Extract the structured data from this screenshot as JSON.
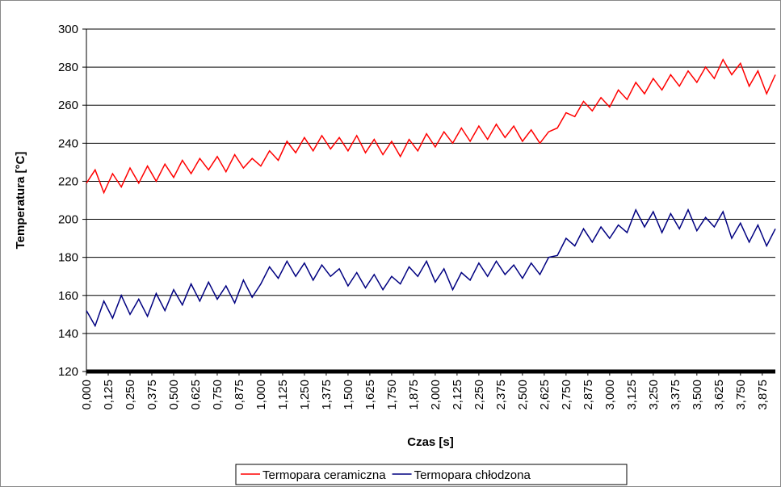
{
  "chart_data": {
    "type": "line",
    "y_label": "Temperatura [°C]",
    "x_label": "Czas [s]",
    "xlim": [
      0,
      3.95
    ],
    "ylim": [
      120,
      300
    ],
    "yticks": [
      120,
      140,
      160,
      180,
      200,
      220,
      240,
      260,
      280,
      300
    ],
    "xticks": [
      {
        "value": 0,
        "label": "0,000"
      },
      {
        "value": 0.125,
        "label": "0,125"
      },
      {
        "value": 0.25,
        "label": "0,250"
      },
      {
        "value": 0.375,
        "label": "0,375"
      },
      {
        "value": 0.5,
        "label": "0,500"
      },
      {
        "value": 0.625,
        "label": "0,625"
      },
      {
        "value": 0.75,
        "label": "0,750"
      },
      {
        "value": 0.875,
        "label": "0,875"
      },
      {
        "value": 1,
        "label": "1,000"
      },
      {
        "value": 1.125,
        "label": "1,125"
      },
      {
        "value": 1.25,
        "label": "1,250"
      },
      {
        "value": 1.375,
        "label": "1,375"
      },
      {
        "value": 1.5,
        "label": "1,500"
      },
      {
        "value": 1.625,
        "label": "1,625"
      },
      {
        "value": 1.75,
        "label": "1,750"
      },
      {
        "value": 1.875,
        "label": "1,875"
      },
      {
        "value": 2,
        "label": "2,000"
      },
      {
        "value": 2.125,
        "label": "2,125"
      },
      {
        "value": 2.25,
        "label": "2,250"
      },
      {
        "value": 2.375,
        "label": "2,375"
      },
      {
        "value": 2.5,
        "label": "2,500"
      },
      {
        "value": 2.625,
        "label": "2,625"
      },
      {
        "value": 2.75,
        "label": "2,750"
      },
      {
        "value": 2.875,
        "label": "2,875"
      },
      {
        "value": 3,
        "label": "3,000"
      },
      {
        "value": 3.125,
        "label": "3,125"
      },
      {
        "value": 3.25,
        "label": "3,250"
      },
      {
        "value": 3.375,
        "label": "3,375"
      },
      {
        "value": 3.5,
        "label": "3,500"
      },
      {
        "value": 3.625,
        "label": "3,625"
      },
      {
        "value": 3.75,
        "label": "3,750"
      },
      {
        "value": 3.875,
        "label": "3,875"
      }
    ],
    "grid": true,
    "legend": "bottom",
    "x": [
      0,
      0.05,
      0.1,
      0.15,
      0.2,
      0.25,
      0.3,
      0.35,
      0.4,
      0.45,
      0.5,
      0.55,
      0.6,
      0.65,
      0.7,
      0.75,
      0.8,
      0.85,
      0.9,
      0.95,
      1,
      1.05,
      1.1,
      1.15,
      1.2,
      1.25,
      1.3,
      1.35,
      1.4,
      1.45,
      1.5,
      1.55,
      1.6,
      1.65,
      1.7,
      1.75,
      1.8,
      1.85,
      1.9,
      1.95,
      2,
      2.05,
      2.1,
      2.15,
      2.2,
      2.25,
      2.3,
      2.35,
      2.4,
      2.45,
      2.5,
      2.55,
      2.6,
      2.65,
      2.7,
      2.75,
      2.8,
      2.85,
      2.9,
      2.95,
      3,
      3.05,
      3.1,
      3.15,
      3.2,
      3.25,
      3.3,
      3.35,
      3.4,
      3.45,
      3.5,
      3.55,
      3.6,
      3.65,
      3.7,
      3.75,
      3.8,
      3.85,
      3.9,
      3.95
    ],
    "series": [
      {
        "name": "Termopara ceramiczna",
        "color": "#ff0000",
        "values": [
          219,
          226,
          214,
          224,
          217,
          227,
          219,
          228,
          220,
          229,
          222,
          231,
          224,
          232,
          226,
          233,
          225,
          234,
          227,
          232,
          228,
          236,
          231,
          241,
          235,
          243,
          236,
          244,
          237,
          243,
          236,
          244,
          235,
          242,
          234,
          241,
          233,
          242,
          236,
          245,
          238,
          246,
          240,
          248,
          241,
          249,
          242,
          250,
          243,
          249,
          241,
          247,
          240,
          246,
          248,
          256,
          254,
          262,
          257,
          264,
          259,
          268,
          263,
          272,
          266,
          274,
          268,
          276,
          270,
          278,
          272,
          280,
          274,
          284,
          276,
          282,
          270,
          278,
          266,
          276
        ]
      },
      {
        "name": "Termopara chłodzona",
        "color": "#000080",
        "values": [
          152,
          144,
          157,
          148,
          160,
          150,
          158,
          149,
          161,
          152,
          163,
          155,
          166,
          157,
          167,
          158,
          165,
          156,
          168,
          159,
          166,
          175,
          169,
          178,
          170,
          177,
          168,
          176,
          170,
          174,
          165,
          172,
          164,
          171,
          163,
          170,
          166,
          175,
          170,
          178,
          167,
          174,
          163,
          172,
          168,
          177,
          170,
          178,
          171,
          176,
          169,
          177,
          171,
          180,
          181,
          190,
          186,
          195,
          188,
          196,
          190,
          197,
          193,
          205,
          196,
          204,
          193,
          203,
          195,
          205,
          194,
          201,
          196,
          204,
          190,
          198,
          188,
          197,
          186,
          195
        ]
      }
    ]
  }
}
